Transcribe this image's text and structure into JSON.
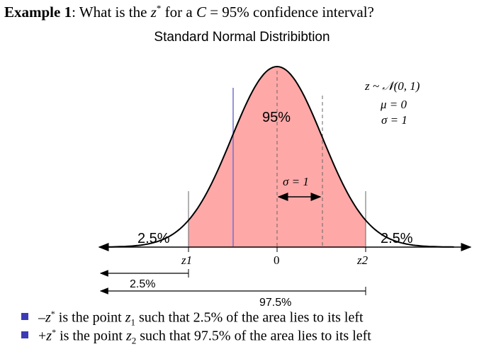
{
  "heading": {
    "example_label": "Example 1",
    "colon": ":",
    "q_prefix": " What is the ",
    "z_sym": "z",
    "star": "*",
    "q_for": " for a ",
    "c_sym": "C",
    "q_suffix": " = 95% confidence interval?"
  },
  "chart_title": "Standard Normal Distribibtion",
  "distribution": {
    "dist_line": "z ~ 𝒩(0, 1)",
    "mu_line": "μ = 0",
    "sigma_line": "σ = 1",
    "sigma_marker": "σ = 1"
  },
  "chart_data": {
    "type": "area",
    "title": "Standard Normal Distribibtion",
    "mean": 0,
    "sd": 1,
    "shaded_interval": [
      -1.96,
      1.96
    ],
    "center_area_label": "95%",
    "left_tail_label": "2.5%",
    "right_tail_label": "2.5%",
    "tick_labels": [
      "z1",
      "0",
      "z2"
    ],
    "bottom_labels": [
      "2.5%",
      "97.5%"
    ]
  },
  "colors": {
    "shade": "#ffa8a8",
    "curve": "#000000",
    "blue_line": "#7070d0",
    "bullet": "#3b3bb5"
  },
  "bullets": [
    {
      "minus": "–",
      "z": "z",
      "star": "*",
      "t1": " is the point ",
      "zsub": "z",
      "sub": "1",
      "t2": " such that 2.5% of the area lies to its left"
    },
    {
      "minus": "+",
      "z": "z",
      "star": "*",
      "t1": " is the point ",
      "zsub": "z",
      "sub": "2",
      "t2": " such that 97.5% of the area lies to its left"
    }
  ]
}
